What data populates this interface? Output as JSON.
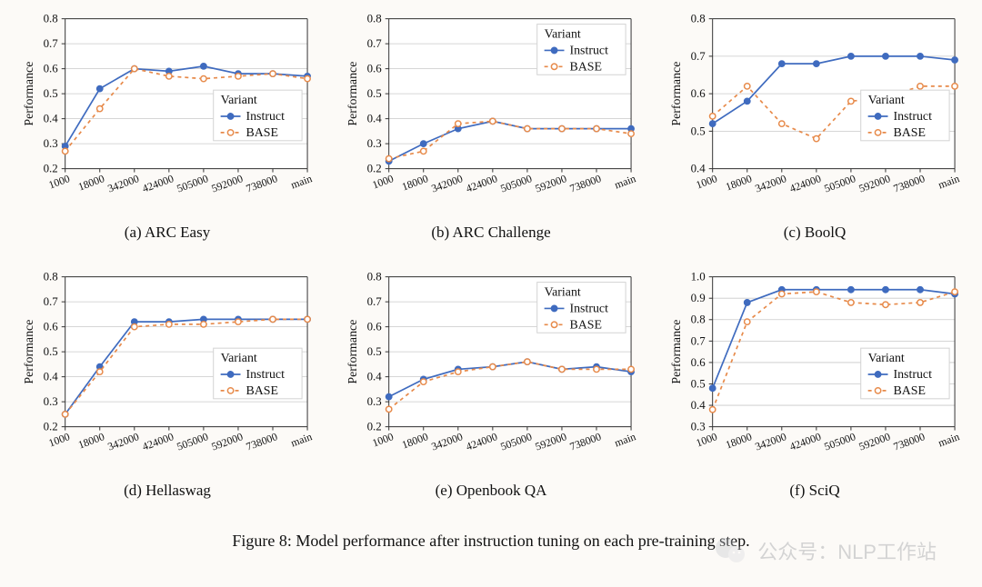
{
  "figure": {
    "caption": "Figure 8: Model performance after instruction tuning on each pre-training step.",
    "watermark_text": "公众号：NLP工作站",
    "background_color": "#fcfaf7",
    "grid_color": "#c9c9c9",
    "axis_color": "#333333",
    "panel_bg": "#ffffff",
    "label_fontsize": 14,
    "tick_fontsize_y": 13,
    "tick_fontsize_x": 12,
    "x_labels": [
      "1000",
      "18000",
      "342000",
      "424000",
      "505000",
      "592000",
      "738000",
      "main"
    ],
    "x_label_rotation_deg": -20,
    "ylabel": "Performance",
    "series_meta": [
      {
        "id": "instruct",
        "label": "Instruct",
        "color": "#3f6bbf",
        "marker": "circle",
        "marker_fill": "#3f6bbf",
        "dash": ""
      },
      {
        "id": "base",
        "label": "BASE",
        "color": "#e78a4a",
        "marker": "circle",
        "marker_fill": "#ffffff",
        "dash": "4,4"
      }
    ],
    "line_width": 1.7,
    "marker_radius": 3.2,
    "legend_title": "Variant",
    "legend_border_color": "#d3d3d3",
    "legend_bg": "#ffffff",
    "panels": [
      {
        "id": "a",
        "caption": "(a) ARC Easy",
        "ylim": [
          0.2,
          0.8
        ],
        "ytick_step": 0.1,
        "ytick_decimals": 1,
        "legend_pos": "right-mid",
        "series": {
          "instruct": [
            0.29,
            0.52,
            0.6,
            0.59,
            0.61,
            0.58,
            0.58,
            0.57
          ],
          "base": [
            0.27,
            0.44,
            0.6,
            0.57,
            0.56,
            0.57,
            0.58,
            0.56
          ]
        }
      },
      {
        "id": "b",
        "caption": "(b) ARC Challenge",
        "ylim": [
          0.2,
          0.8
        ],
        "ytick_step": 0.1,
        "ytick_decimals": 1,
        "legend_pos": "right-top",
        "series": {
          "instruct": [
            0.23,
            0.3,
            0.36,
            0.39,
            0.36,
            0.36,
            0.36,
            0.36
          ],
          "base": [
            0.24,
            0.27,
            0.38,
            0.39,
            0.36,
            0.36,
            0.36,
            0.34
          ]
        }
      },
      {
        "id": "c",
        "caption": "(c) BoolQ",
        "ylim": [
          0.4,
          0.8
        ],
        "ytick_step": 0.1,
        "ytick_decimals": 1,
        "legend_pos": "right-mid",
        "series": {
          "instruct": [
            0.52,
            0.58,
            0.68,
            0.68,
            0.7,
            0.7,
            0.7,
            0.69
          ],
          "base": [
            0.54,
            0.62,
            0.52,
            0.48,
            0.58,
            0.59,
            0.62,
            0.62
          ]
        }
      },
      {
        "id": "d",
        "caption": "(d) Hellaswag",
        "ylim": [
          0.2,
          0.8
        ],
        "ytick_step": 0.1,
        "ytick_decimals": 1,
        "legend_pos": "right-mid",
        "series": {
          "instruct": [
            0.25,
            0.44,
            0.62,
            0.62,
            0.63,
            0.63,
            0.63,
            0.63
          ],
          "base": [
            0.25,
            0.42,
            0.6,
            0.61,
            0.61,
            0.62,
            0.63,
            0.63
          ]
        }
      },
      {
        "id": "e",
        "caption": "(e) Openbook QA",
        "ylim": [
          0.2,
          0.8
        ],
        "ytick_step": 0.1,
        "ytick_decimals": 1,
        "legend_pos": "right-top",
        "series": {
          "instruct": [
            0.32,
            0.39,
            0.43,
            0.44,
            0.46,
            0.43,
            0.44,
            0.42
          ],
          "base": [
            0.27,
            0.38,
            0.42,
            0.44,
            0.46,
            0.43,
            0.43,
            0.43
          ]
        }
      },
      {
        "id": "f",
        "caption": "(f) SciQ",
        "ylim": [
          0.3,
          1.0
        ],
        "ytick_step": 0.1,
        "ytick_decimals": 1,
        "legend_pos": "right-mid",
        "series": {
          "instruct": [
            0.48,
            0.88,
            0.94,
            0.94,
            0.94,
            0.94,
            0.94,
            0.92
          ],
          "base": [
            0.38,
            0.79,
            0.92,
            0.93,
            0.88,
            0.87,
            0.88,
            0.93
          ]
        }
      }
    ]
  }
}
